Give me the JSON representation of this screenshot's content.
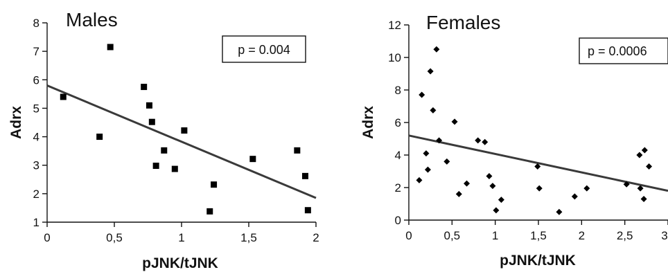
{
  "chart_data": [
    {
      "type": "scatter",
      "title": "Males",
      "xlabel": "pJNK/tJNK",
      "ylabel": "Adrx",
      "annotation": "p = 0.004",
      "xlim": [
        0,
        2
      ],
      "ylim": [
        1,
        8
      ],
      "x_ticks": [
        0,
        0.5,
        1,
        1.5,
        2
      ],
      "x_tick_labels": [
        "0",
        "0,5",
        "1",
        "1,5",
        "2"
      ],
      "y_ticks": [
        1,
        2,
        3,
        4,
        5,
        6,
        7,
        8
      ],
      "y_tick_labels": [
        "1",
        "2",
        "3",
        "4",
        "5",
        "6",
        "7",
        "8"
      ],
      "marker": "square",
      "points": [
        [
          0.12,
          5.4
        ],
        [
          0.39,
          4.0
        ],
        [
          0.47,
          7.15
        ],
        [
          0.72,
          5.75
        ],
        [
          0.76,
          5.1
        ],
        [
          0.78,
          4.52
        ],
        [
          0.81,
          2.98
        ],
        [
          0.87,
          3.52
        ],
        [
          0.95,
          2.87
        ],
        [
          1.02,
          4.22
        ],
        [
          1.21,
          1.38
        ],
        [
          1.24,
          2.32
        ],
        [
          1.53,
          3.22
        ],
        [
          1.86,
          3.52
        ],
        [
          1.92,
          2.62
        ],
        [
          1.94,
          1.42
        ]
      ],
      "trendline": [
        [
          0,
          5.8
        ],
        [
          2,
          1.85
        ]
      ]
    },
    {
      "type": "scatter",
      "title": "Females",
      "xlabel": "pJNK/tJNK",
      "ylabel": "Adrx",
      "annotation": "p = 0.0006",
      "xlim": [
        0,
        3
      ],
      "ylim": [
        0,
        12
      ],
      "x_ticks": [
        0,
        0.5,
        1,
        1.5,
        2,
        2.5,
        3
      ],
      "x_tick_labels": [
        "0",
        "0,5",
        "1",
        "1,5",
        "2",
        "2,5",
        "3"
      ],
      "y_ticks": [
        0,
        2,
        4,
        6,
        8,
        10,
        12
      ],
      "y_tick_labels": [
        "0",
        "2",
        "4",
        "6",
        "8",
        "10",
        "12"
      ],
      "marker": "diamond",
      "points": [
        [
          0.12,
          2.45
        ],
        [
          0.15,
          7.7
        ],
        [
          0.2,
          4.1
        ],
        [
          0.22,
          3.1
        ],
        [
          0.25,
          9.15
        ],
        [
          0.28,
          6.75
        ],
        [
          0.32,
          10.5
        ],
        [
          0.35,
          4.9
        ],
        [
          0.44,
          3.6
        ],
        [
          0.53,
          6.05
        ],
        [
          0.58,
          1.6
        ],
        [
          0.67,
          2.25
        ],
        [
          0.8,
          4.9
        ],
        [
          0.88,
          4.8
        ],
        [
          0.93,
          2.7
        ],
        [
          0.97,
          2.1
        ],
        [
          1.01,
          0.6
        ],
        [
          1.07,
          1.25
        ],
        [
          1.49,
          3.3
        ],
        [
          1.51,
          1.95
        ],
        [
          1.74,
          0.5
        ],
        [
          1.92,
          1.45
        ],
        [
          2.06,
          1.95
        ],
        [
          2.52,
          2.2
        ],
        [
          2.67,
          4.0
        ],
        [
          2.68,
          1.95
        ],
        [
          2.72,
          1.3
        ],
        [
          2.73,
          4.3
        ],
        [
          2.78,
          3.3
        ]
      ],
      "trendline": [
        [
          0,
          5.2
        ],
        [
          3,
          1.8
        ]
      ]
    }
  ]
}
